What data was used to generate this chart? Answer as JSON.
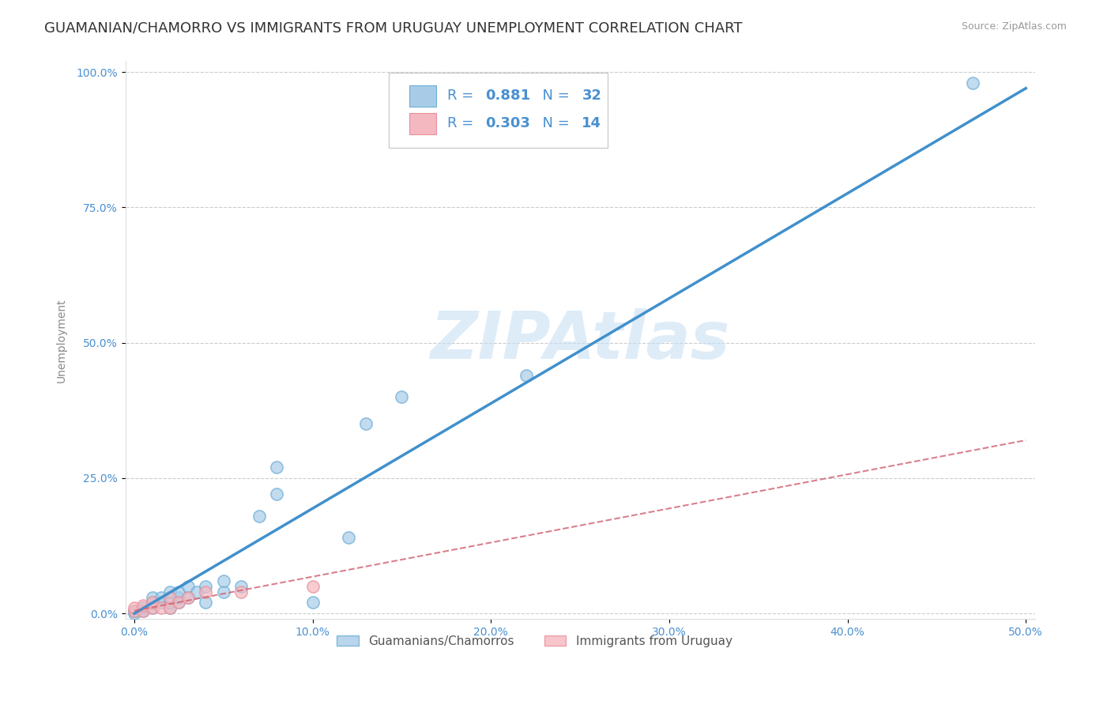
{
  "title": "GUAMANIAN/CHAMORRO VS IMMIGRANTS FROM URUGUAY UNEMPLOYMENT CORRELATION CHART",
  "source_text": "Source: ZipAtlas.com",
  "ylabel": "Unemployment",
  "xlim": [
    -0.005,
    0.505
  ],
  "ylim": [
    -0.01,
    1.02
  ],
  "xtick_values": [
    0.0,
    0.1,
    0.2,
    0.3,
    0.4,
    0.5
  ],
  "xtick_labels": [
    "0.0%",
    "10.0%",
    "20.0%",
    "30.0%",
    "40.0%",
    "50.0%"
  ],
  "ytick_values": [
    0.0,
    0.25,
    0.5,
    0.75,
    1.0
  ],
  "ytick_labels": [
    "0.0%",
    "25.0%",
    "50.0%",
    "75.0%",
    "100.0%"
  ],
  "background_color": "#ffffff",
  "watermark": "ZIPAtlas",
  "blue_color": "#a8cce8",
  "blue_edge_color": "#6baed6",
  "blue_line_color": "#4090cc",
  "pink_color": "#f4b8c0",
  "pink_edge_color": "#e8909a",
  "pink_line_color": "#d06070",
  "legend_color": "#4a90d0",
  "blue_scatter_x": [
    0.0,
    0.0,
    0.005,
    0.005,
    0.01,
    0.01,
    0.01,
    0.015,
    0.015,
    0.02,
    0.02,
    0.02,
    0.025,
    0.025,
    0.025,
    0.03,
    0.03,
    0.035,
    0.04,
    0.04,
    0.05,
    0.05,
    0.06,
    0.07,
    0.08,
    0.08,
    0.1,
    0.12,
    0.13,
    0.15,
    0.22,
    0.47
  ],
  "blue_scatter_y": [
    0.0,
    0.005,
    0.005,
    0.01,
    0.01,
    0.02,
    0.03,
    0.02,
    0.03,
    0.01,
    0.02,
    0.04,
    0.02,
    0.03,
    0.04,
    0.03,
    0.05,
    0.04,
    0.02,
    0.05,
    0.04,
    0.06,
    0.05,
    0.18,
    0.22,
    0.27,
    0.02,
    0.14,
    0.35,
    0.4,
    0.44,
    0.98
  ],
  "pink_scatter_x": [
    0.0,
    0.0,
    0.005,
    0.005,
    0.01,
    0.01,
    0.015,
    0.02,
    0.02,
    0.025,
    0.03,
    0.04,
    0.06,
    0.1
  ],
  "pink_scatter_y": [
    0.005,
    0.01,
    0.005,
    0.015,
    0.01,
    0.02,
    0.01,
    0.01,
    0.03,
    0.02,
    0.03,
    0.04,
    0.04,
    0.05
  ],
  "blue_trend_x": [
    0.0,
    0.5
  ],
  "blue_trend_y": [
    0.0,
    0.97
  ],
  "pink_trend_x": [
    0.0,
    0.5
  ],
  "pink_trend_y": [
    0.005,
    0.32
  ],
  "title_fontsize": 13,
  "axis_label_fontsize": 10,
  "tick_fontsize": 10,
  "legend_fontsize": 13,
  "watermark_fontsize": 60
}
